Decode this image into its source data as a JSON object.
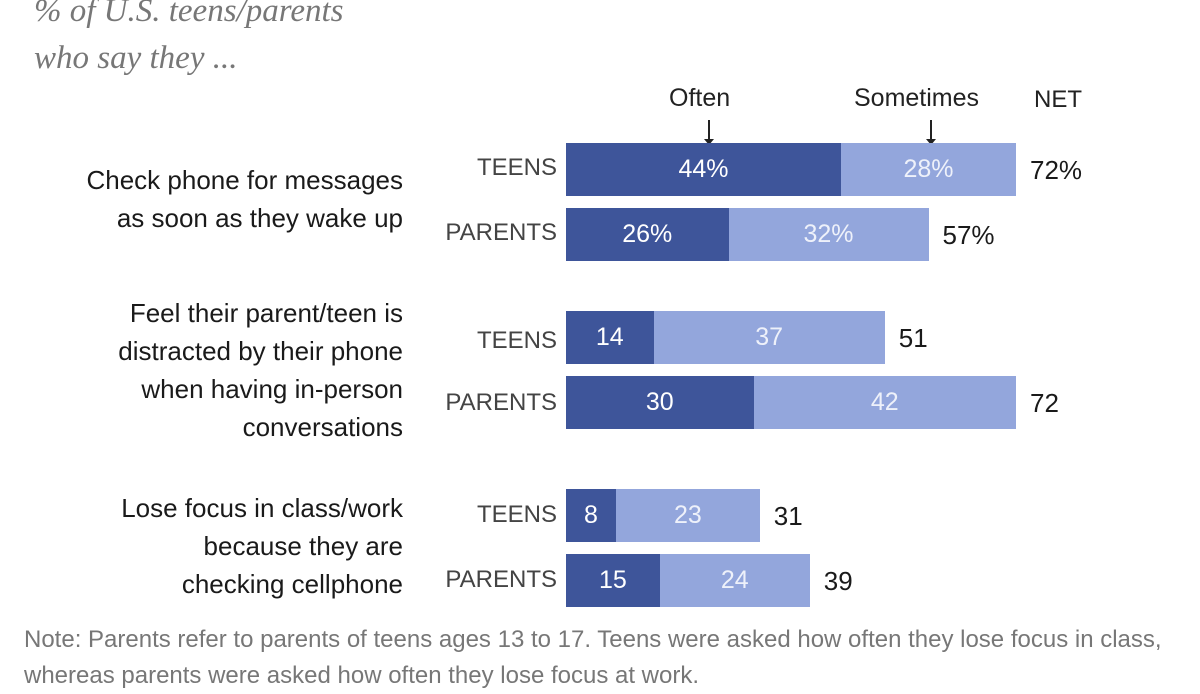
{
  "subtitle_lines": [
    "% of U.S. teens/parents",
    "who say they ..."
  ],
  "headers": {
    "often": "Often",
    "sometimes": "Sometimes",
    "net": "NET"
  },
  "note": "Note: Parents refer to parents of teens ages 13 to 17. Teens were asked how often they lose focus in class, whereas parents were asked how often they lose focus at work.",
  "colors": {
    "often": "#3e559a",
    "sometimes": "#93a6dc"
  },
  "chart_data": {
    "type": "bar",
    "orientation": "horizontal-stacked",
    "series": [
      {
        "name": "Often",
        "values": [
          44,
          26,
          14,
          30,
          8,
          15
        ]
      },
      {
        "name": "Sometimes",
        "values": [
          28,
          32,
          37,
          42,
          23,
          24
        ]
      }
    ],
    "net": [
      72,
      57,
      51,
      72,
      31,
      39
    ],
    "groups": [
      {
        "question_lines": [
          "Check phone for messages",
          "as soon as they wake up"
        ],
        "rows": [
          {
            "label": "TEENS",
            "often": 44,
            "often_label": "44%",
            "sometimes": 28,
            "sometimes_label": "28%",
            "net": 72,
            "net_label": "72%"
          },
          {
            "label": "PARENTS",
            "often": 26,
            "often_label": "26%",
            "sometimes": 32,
            "sometimes_label": "32%",
            "net": 57,
            "net_label": "57%"
          }
        ]
      },
      {
        "question_lines": [
          "Feel their parent/teen is",
          "distracted by their phone",
          "when having in-person",
          "conversations"
        ],
        "rows": [
          {
            "label": "TEENS",
            "often": 14,
            "often_label": "14",
            "sometimes": 37,
            "sometimes_label": "37",
            "net": 51,
            "net_label": "51"
          },
          {
            "label": "PARENTS",
            "often": 30,
            "often_label": "30",
            "sometimes": 42,
            "sometimes_label": "42",
            "net": 72,
            "net_label": "72"
          }
        ]
      },
      {
        "question_lines": [
          "Lose focus in class/work",
          "because they are",
          "checking cellphone"
        ],
        "rows": [
          {
            "label": "TEENS",
            "often": 8,
            "often_label": "8",
            "sometimes": 23,
            "sometimes_label": "23",
            "net": 31,
            "net_label": "31"
          },
          {
            "label": "PARENTS",
            "often": 15,
            "often_label": "15",
            "sometimes": 24,
            "sometimes_label": "24",
            "net": 39,
            "net_label": "39"
          }
        ]
      }
    ]
  }
}
